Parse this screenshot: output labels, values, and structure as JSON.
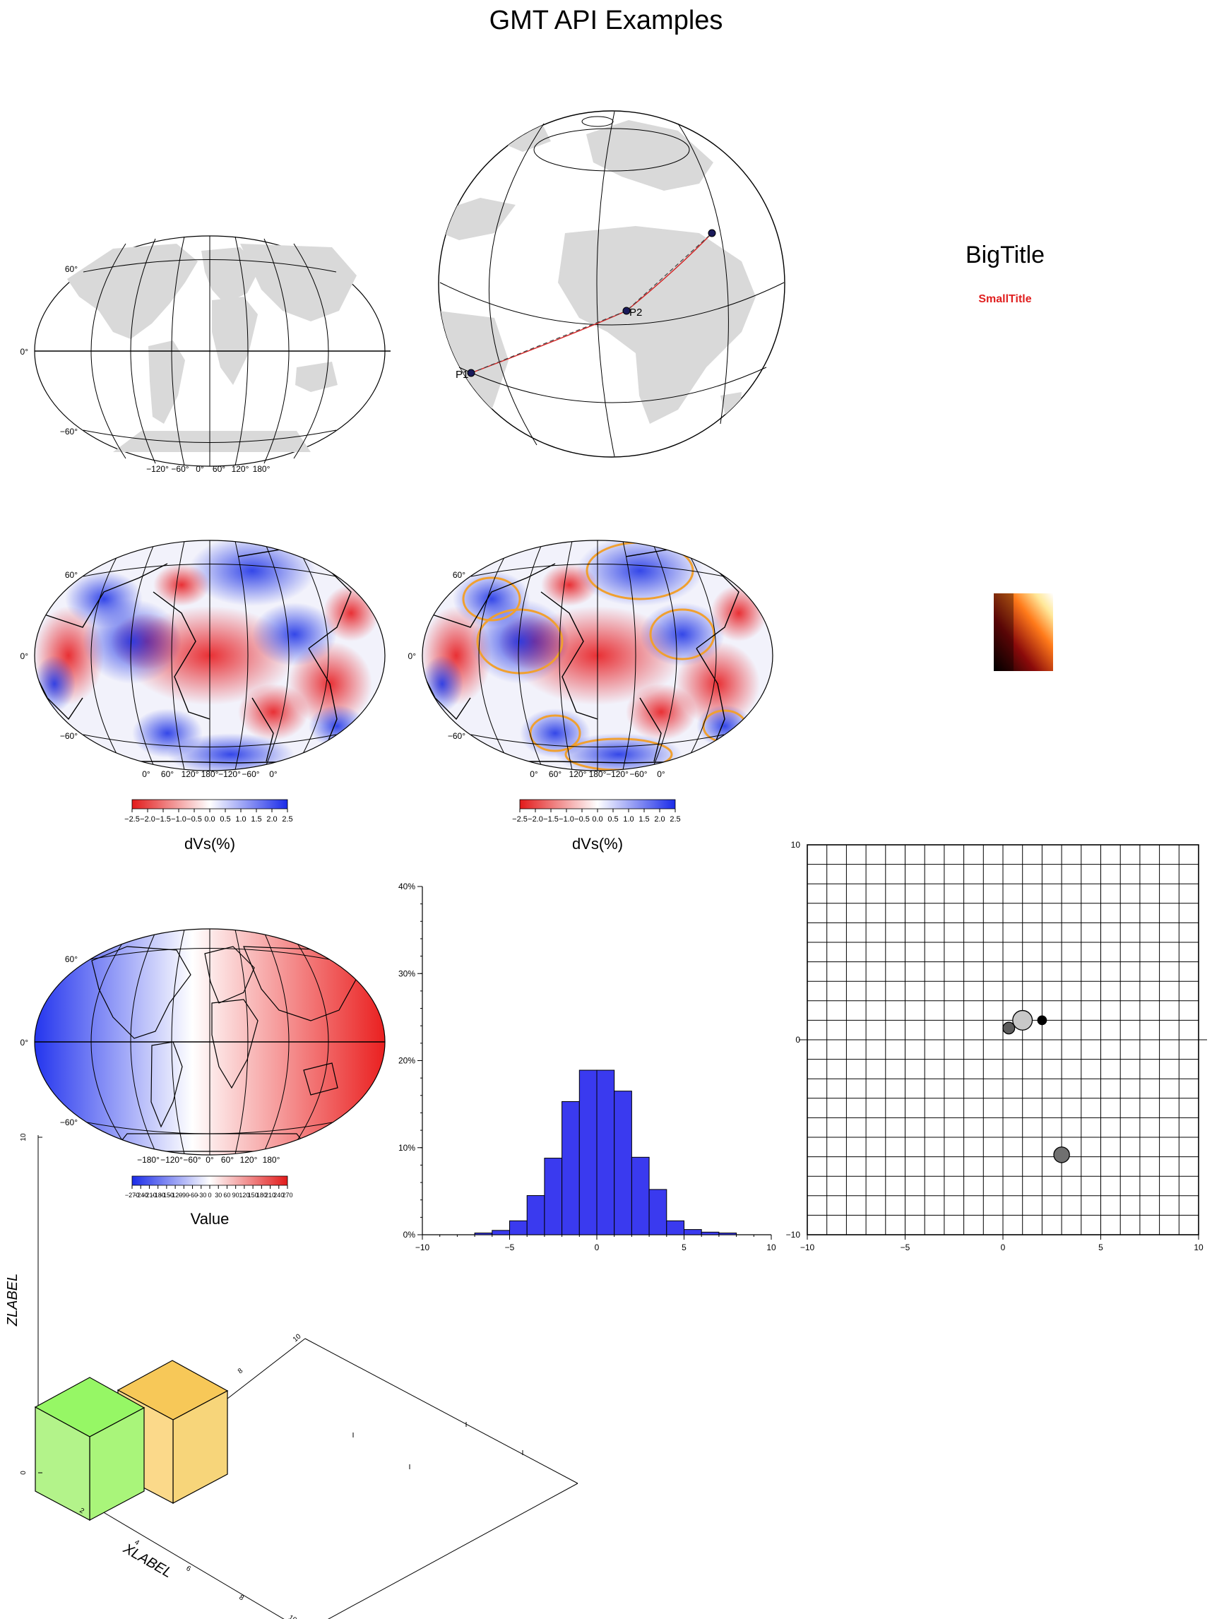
{
  "page": {
    "title": "GMT API Examples"
  },
  "colors": {
    "land": "#d9d9d9",
    "neg": "#e21b1b",
    "pos": "#1a2be8",
    "contour": "#f0a030",
    "route_red": "#d42020",
    "hist_bar": "#3a3aef",
    "cube_green": "#a9f57a",
    "cube_orange": "#f7d57a",
    "small_title": "#e02020"
  },
  "chart_data": [
    {
      "id": "world-map",
      "type": "map",
      "projection": "Robinson",
      "lat_labels": [
        "60°",
        "0°",
        "−60°"
      ],
      "lon_labels": [
        "−120°",
        "−60°",
        "0°",
        "60°",
        "120°",
        "180°"
      ]
    },
    {
      "id": "globe",
      "type": "map",
      "projection": "orthographic",
      "points": [
        {
          "label": "P1",
          "lon": -48,
          "lat": -22
        },
        {
          "label": "P2",
          "lon": 0,
          "lat": 0
        },
        {
          "label": "",
          "lon": 35,
          "lat": 32
        }
      ]
    },
    {
      "id": "titles",
      "type": "text",
      "big_title": "BigTitle",
      "small_title": "SmallTitle"
    },
    {
      "id": "tomo-map-1",
      "type": "heatmap",
      "lat_labels": [
        "60°",
        "0°",
        "−60°"
      ],
      "lon_labels": [
        "0°",
        "60°",
        "120°",
        "180°",
        "−120°",
        "−60°",
        "0°"
      ],
      "colorbar": {
        "ticks": [
          "−2.5",
          "−2.0",
          "−1.5",
          "−1.0",
          "−0.5",
          "0.0",
          "0.5",
          "1.0",
          "1.5",
          "2.0",
          "2.5"
        ],
        "label": "dVs(%)"
      }
    },
    {
      "id": "tomo-map-2",
      "type": "heatmap",
      "contours": true,
      "lat_labels": [
        "60°",
        "0°",
        "−60°"
      ],
      "lon_labels": [
        "0°",
        "60°",
        "120°",
        "180°",
        "−120°",
        "−60°",
        "0°"
      ],
      "colorbar": {
        "ticks": [
          "−2.5",
          "−2.0",
          "−1.5",
          "−1.0",
          "−0.5",
          "0.0",
          "0.5",
          "1.0",
          "1.5",
          "2.0",
          "2.5"
        ],
        "label": "dVs(%)"
      }
    },
    {
      "id": "hot-swatch",
      "type": "heatmap",
      "colormap": "hot"
    },
    {
      "id": "value-map",
      "type": "heatmap",
      "lat_labels": [
        "60°",
        "0°",
        "−60°"
      ],
      "lon_labels": [
        "−180°",
        "−120°",
        "−60°",
        "0°",
        "60°",
        "120°",
        "180°"
      ],
      "colorbar": {
        "ticks": [
          "−270",
          "−240",
          "−210",
          "−180",
          "−150",
          "−120",
          "−90",
          "−60",
          "−30",
          "0",
          "30",
          "60",
          "90",
          "120",
          "150",
          "180",
          "210",
          "240",
          "270"
        ],
        "label": "Value"
      }
    },
    {
      "id": "histogram",
      "type": "bar",
      "x": [
        -6.5,
        -5.5,
        -4.5,
        -3.5,
        -2.5,
        -1.5,
        -0.5,
        0.5,
        1.5,
        2.5,
        3.5,
        4.5,
        5.5,
        6.5,
        7.5
      ],
      "values": [
        0.2,
        0.5,
        1.6,
        4.5,
        8.8,
        15.3,
        18.9,
        18.9,
        16.5,
        8.9,
        5.2,
        1.6,
        0.6,
        0.3,
        0.2
      ],
      "bin_width": 1,
      "xlim": [
        -10,
        10
      ],
      "ylim": [
        0,
        40
      ],
      "x_ticks": [
        "−10",
        "−5",
        "0",
        "5",
        "10"
      ],
      "y_ticks": [
        "0%",
        "10%",
        "20%",
        "30%",
        "40%"
      ]
    },
    {
      "id": "grid-scatter",
      "type": "scatter",
      "xlim": [
        -10,
        10
      ],
      "ylim": [
        -10,
        10
      ],
      "grid": true,
      "x_ticks": [
        "−10",
        "−5",
        "0",
        "5",
        "10"
      ],
      "y_ticks": [
        "−10",
        "0",
        "10"
      ],
      "points": [
        {
          "x": 0.3,
          "y": 0.6,
          "size": 0.6,
          "fill": "#5c5c5c"
        },
        {
          "x": 1.0,
          "y": 1.0,
          "size": 1.0,
          "fill": "#c8c8c8"
        },
        {
          "x": 2.0,
          "y": 1.0,
          "size": 0.45,
          "fill": "#000000"
        },
        {
          "x": 3.0,
          "y": -5.9,
          "size": 0.8,
          "fill": "#707070"
        }
      ]
    },
    {
      "id": "cubes-3d",
      "type": "bar3d",
      "xlabel": "XLABEL",
      "zlabel": "ZLABEL",
      "x_ticks": [
        "2",
        "4",
        "6",
        "8",
        "10"
      ],
      "y_ticks": [
        "8",
        "10"
      ],
      "z_ticks": [
        "0",
        "10"
      ]
    }
  ]
}
